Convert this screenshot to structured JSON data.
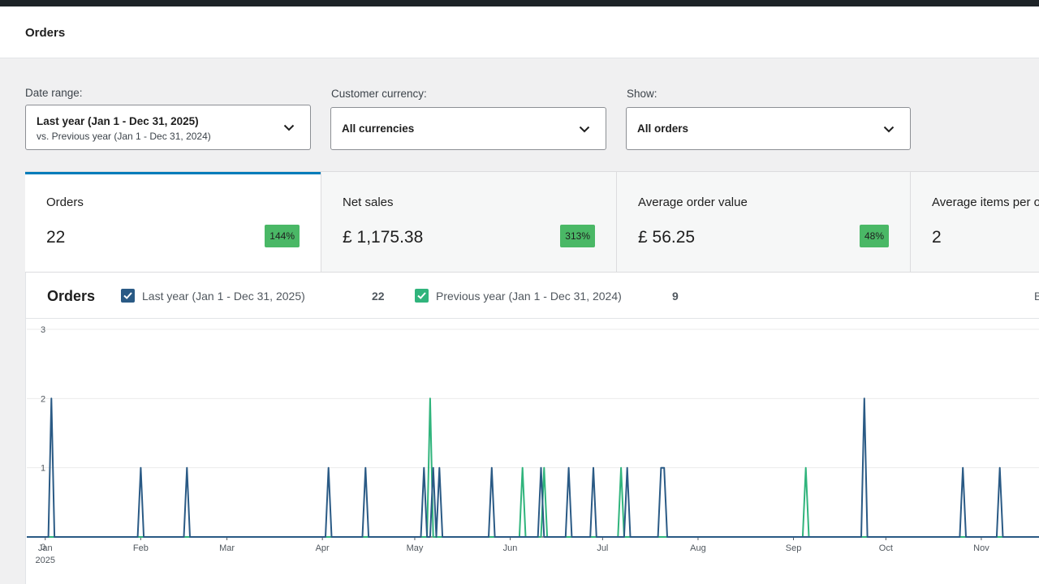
{
  "header": {
    "title": "Orders"
  },
  "filters": {
    "date_range": {
      "label": "Date range:",
      "value": "Last year (Jan 1 - Dec 31, 2025)",
      "compare": "vs. Previous year (Jan 1 - Dec 31, 2024)"
    },
    "currency": {
      "label": "Customer currency:",
      "value": "All currencies"
    },
    "show": {
      "label": "Show:",
      "value": "All orders"
    }
  },
  "tiles": [
    {
      "label": "Orders",
      "value": "22",
      "delta": "144%"
    },
    {
      "label": "Net sales",
      "value": "£ 1,175.38",
      "delta": "313%"
    },
    {
      "label": "Average order value",
      "value": "£ 56.25",
      "delta": "48%"
    },
    {
      "label": "Average items per order",
      "value": "2",
      "delta": ""
    }
  ],
  "chart_header": {
    "title": "Orders",
    "primary": {
      "label": "Last year (Jan 1 - Dec 31, 2025)",
      "total": "22"
    },
    "secondary": {
      "label": "Previous year (Jan 1 - Dec 31, 2024)",
      "total": "9"
    },
    "cut_text": "B"
  },
  "colors": {
    "primary": "#2a5a85",
    "secondary": "#30b47c",
    "accent": "#007cba",
    "badge": "#4ab866"
  },
  "icons": {
    "dropdown": "chevron-down-icon",
    "check": "checkmark-icon"
  },
  "chart_data": {
    "type": "line",
    "ylim": [
      0,
      3
    ],
    "yticks": [
      0,
      1,
      2,
      3
    ],
    "xlim": [
      "2024-12-26",
      "2025-11-20"
    ],
    "xticks": [
      {
        "date": "2025-01-01",
        "label": "Jan",
        "sub": "2025"
      },
      {
        "date": "2025-02-01",
        "label": "Feb",
        "sub": ""
      },
      {
        "date": "2025-03-01",
        "label": "Mar",
        "sub": ""
      },
      {
        "date": "2025-04-01",
        "label": "Apr",
        "sub": ""
      },
      {
        "date": "2025-05-01",
        "label": "May",
        "sub": ""
      },
      {
        "date": "2025-06-01",
        "label": "Jun",
        "sub": ""
      },
      {
        "date": "2025-07-01",
        "label": "Jul",
        "sub": ""
      },
      {
        "date": "2025-08-01",
        "label": "Aug",
        "sub": ""
      },
      {
        "date": "2025-09-01",
        "label": "Sep",
        "sub": ""
      },
      {
        "date": "2025-10-01",
        "label": "Oct",
        "sub": ""
      },
      {
        "date": "2025-11-01",
        "label": "Nov",
        "sub": ""
      }
    ],
    "series": [
      {
        "name": "Last year (Jan 1 - Dec 31, 2025)",
        "color": "#2a5a85",
        "points": [
          [
            "2025-01-03",
            2
          ],
          [
            "2025-02-01",
            1
          ],
          [
            "2025-02-16",
            1
          ],
          [
            "2025-04-03",
            1
          ],
          [
            "2025-04-15",
            1
          ],
          [
            "2025-05-04",
            1
          ],
          [
            "2025-05-07",
            1
          ],
          [
            "2025-05-09",
            1
          ],
          [
            "2025-05-26",
            1
          ],
          [
            "2025-06-11",
            1
          ],
          [
            "2025-06-20",
            1
          ],
          [
            "2025-06-28",
            1
          ],
          [
            "2025-07-09",
            1
          ],
          [
            "2025-07-20",
            1
          ],
          [
            "2025-07-21",
            1
          ],
          [
            "2025-09-24",
            2
          ],
          [
            "2025-10-26",
            1
          ],
          [
            "2025-11-07",
            1
          ]
        ]
      },
      {
        "name": "Previous year (Jan 1 - Dec 31, 2024)",
        "color": "#30b47c",
        "points": [
          [
            "2025-05-06",
            2
          ],
          [
            "2025-06-05",
            1
          ],
          [
            "2025-06-12",
            1
          ],
          [
            "2025-07-07",
            1
          ],
          [
            "2025-09-05",
            1
          ]
        ]
      }
    ]
  }
}
